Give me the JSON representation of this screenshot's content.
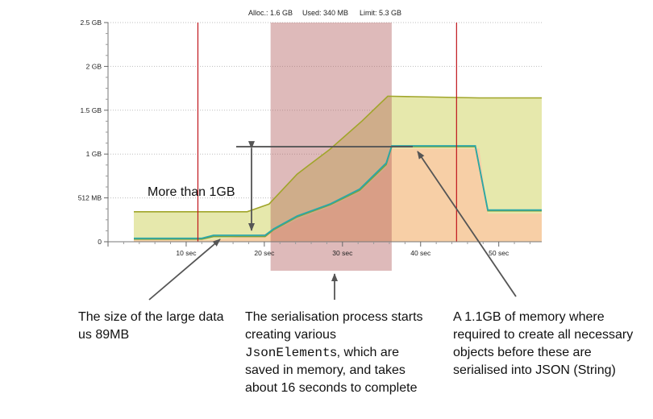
{
  "header": {
    "alloc": "Alloc.: 1.6 GB",
    "used": "Used: 340 MB",
    "limit": "Limit: 5.3 GB"
  },
  "colors": {
    "alloc_fill": "#e6e8ac",
    "alloc_line": "#a0a52a",
    "used_fill": "#f7cfa6",
    "used_line": "#d9a36d",
    "teal_line": "#2aa7a9",
    "green_line": "#7fa03a",
    "highlight": "#b05a5a",
    "marker": "#c0151b",
    "annotation": "#555555"
  },
  "chart_data": {
    "type": "area",
    "x_unit": "sec",
    "xlim": [
      0,
      55.5
    ],
    "ylim_mb": [
      0,
      2560
    ],
    "x_ticks": [
      {
        "value": 10,
        "label": "10 sec"
      },
      {
        "value": 20,
        "label": "20 sec"
      },
      {
        "value": 30,
        "label": "30 sec"
      },
      {
        "value": 40,
        "label": "40 sec"
      },
      {
        "value": 50,
        "label": "50 sec"
      }
    ],
    "y_ticks": [
      {
        "value": 0,
        "label": "0"
      },
      {
        "value": 512,
        "label": "512 MB"
      },
      {
        "value": 1024,
        "label": "1 GB"
      },
      {
        "value": 1536,
        "label": "1.5 GB"
      },
      {
        "value": 2048,
        "label": "2 GB"
      },
      {
        "value": 2560,
        "label": "2.5 GB"
      }
    ],
    "highlight_range": [
      20.8,
      36.3
    ],
    "event_markers": [
      11.5,
      44.6
    ],
    "series": [
      {
        "key": "allocated",
        "x": [
          3.3,
          17.8,
          20.6,
          24.2,
          28.4,
          32.5,
          35.8,
          47.5,
          55.5
        ],
        "y": [
          350,
          350,
          440,
          790,
          1080,
          1410,
          1700,
          1680,
          1680
        ]
      },
      {
        "key": "used_area",
        "x": [
          3.3,
          13.5,
          20.6,
          24.2,
          28.4,
          32.2,
          35.6,
          36.3,
          47.5,
          48.6,
          55.5
        ],
        "y": [
          20,
          20,
          100,
          260,
          410,
          580,
          870,
          1090,
          1090,
          330,
          330
        ]
      },
      {
        "key": "used_line",
        "x": [
          3.3,
          12.0,
          13.5,
          20.1,
          21.2,
          24.2,
          28.4,
          32.2,
          35.6,
          36.3,
          47.0,
          48.6,
          55.5
        ],
        "y": [
          30,
          30,
          60,
          60,
          140,
          290,
          430,
          600,
          900,
          1110,
          1110,
          360,
          360
        ]
      },
      {
        "key": "teal",
        "x": [
          3.3,
          12.0,
          13.5,
          20.1,
          21.2,
          24.2,
          28.4,
          32.2,
          35.6,
          36.3,
          47.0,
          48.6,
          55.5
        ],
        "y": [
          40,
          40,
          75,
          75,
          150,
          300,
          440,
          615,
          920,
          1120,
          1120,
          370,
          370
        ]
      }
    ],
    "annotations": {
      "big_span": "More than 1GB",
      "note_left": "The size of the large data us 89MB",
      "note_mid_1": "The serialisation process starts creating various",
      "note_mid_code": "JsonElement",
      "note_mid_2": "s, which are saved in memory, and takes about 16 seconds to complete",
      "note_right": "A 1.1GB of memory where required to create all necessary objects before these are serialised into JSON (String)"
    }
  }
}
